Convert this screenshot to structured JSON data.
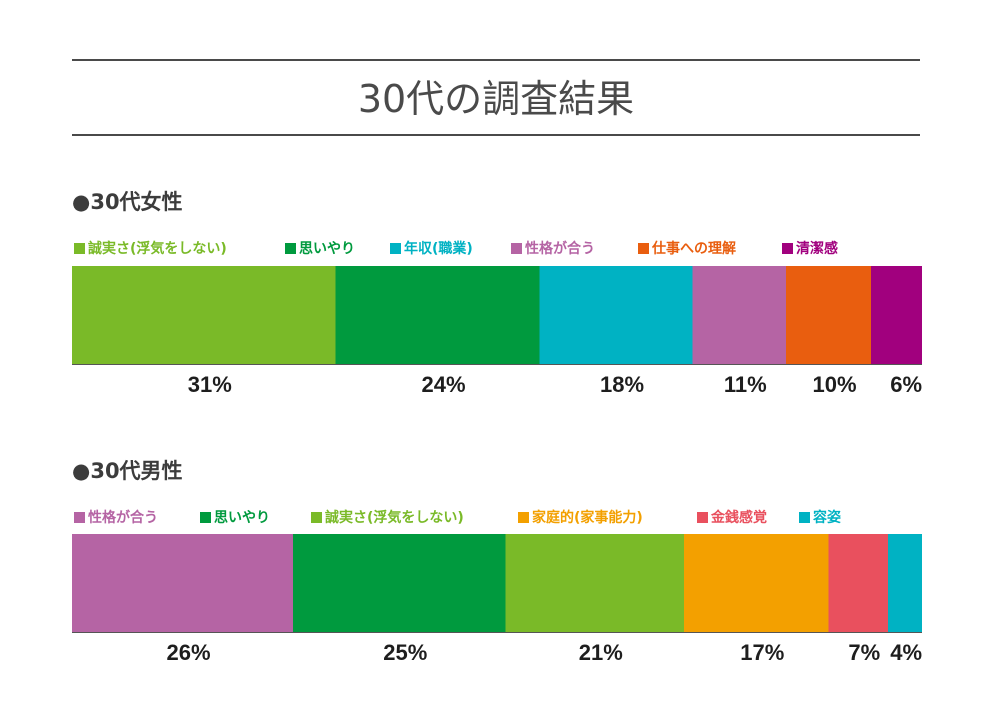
{
  "title": "30代の調査結果",
  "chart_data": [
    {
      "type": "bar",
      "orientation": "horizontal-stacked",
      "heading_bullet": "●",
      "title": "30代女性",
      "series": [
        {
          "name": "誠実さ(浮気をしない)",
          "value": 31,
          "label": "31%",
          "color": "#7aba28"
        },
        {
          "name": "思いやり",
          "value": 24,
          "label": "24%",
          "color": "#009a3e"
        },
        {
          "name": "年収(職業)",
          "value": 18,
          "label": "18%",
          "color": "#00b2c3"
        },
        {
          "name": "性格が合う",
          "value": 11,
          "label": "11%",
          "color": "#b564a4"
        },
        {
          "name": "仕事への理解",
          "value": 10,
          "label": "10%",
          "color": "#e95e0f"
        },
        {
          "name": "清潔感",
          "value": 6,
          "label": "6%",
          "color": "#a1007e"
        }
      ],
      "legend_position": "top"
    },
    {
      "type": "bar",
      "orientation": "horizontal-stacked",
      "heading_bullet": "●",
      "title": "30代男性",
      "series": [
        {
          "name": "性格が合う",
          "value": 26,
          "label": "26%",
          "color": "#b564a4"
        },
        {
          "name": "思いやり",
          "value": 25,
          "label": "25%",
          "color": "#009a3e"
        },
        {
          "name": "誠実さ(浮気をしない)",
          "value": 21,
          "label": "21%",
          "color": "#7aba28"
        },
        {
          "name": "家庭的(家事能力)",
          "value": 17,
          "label": "17%",
          "color": "#f3a000"
        },
        {
          "name": "金銭感覚",
          "value": 7,
          "label": "7%",
          "color": "#e9505e"
        },
        {
          "name": "容姿",
          "value": 4,
          "label": "4%",
          "color": "#00b2c3"
        }
      ],
      "legend_position": "top"
    }
  ]
}
